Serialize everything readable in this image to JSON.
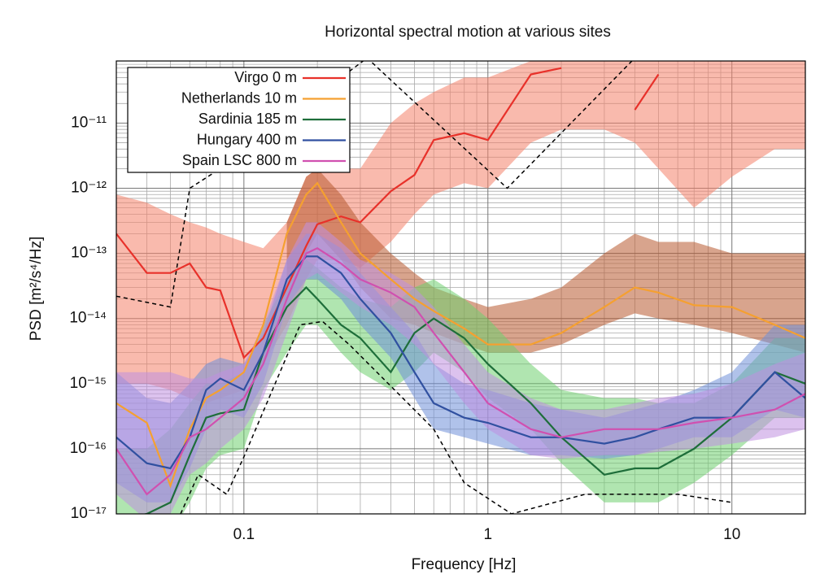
{
  "chart_data": {
    "type": "line",
    "title": "Horizontal spectral motion at various sites",
    "xlabel": "Frequency [Hz]",
    "ylabel": "PSD [m²/s⁴/Hz]",
    "xscale": "log",
    "yscale": "log",
    "grid": true,
    "legend": "top-left",
    "xlim": [
      0.03,
      20
    ],
    "ylim": [
      1e-17,
      9e-11
    ],
    "xticks": [
      0.1,
      1,
      10
    ],
    "yticks": [
      {
        "value": 1e-17,
        "label": "10⁻¹⁷"
      },
      {
        "value": 1e-16,
        "label": "10⁻¹⁶"
      },
      {
        "value": 1e-15,
        "label": "10⁻¹⁵"
      },
      {
        "value": 1e-14,
        "label": "10⁻¹⁴"
      },
      {
        "value": 1e-13,
        "label": "10⁻¹³"
      },
      {
        "value": 1e-12,
        "label": "10⁻¹²"
      },
      {
        "value": 1e-11,
        "label": "10⁻¹¹"
      }
    ],
    "x": [
      0.03,
      0.04,
      0.05,
      0.06,
      0.07,
      0.08,
      0.1,
      0.12,
      0.15,
      0.18,
      0.2,
      0.25,
      0.3,
      0.4,
      0.5,
      0.6,
      0.8,
      1,
      1.5,
      2,
      3,
      4,
      5,
      7,
      10,
      15,
      20
    ],
    "series": [
      {
        "name": "Virgo 0 m",
        "color": "#e8312a",
        "band_color": "#f4826a",
        "values": [
          2e-13,
          5e-14,
          5e-14,
          7e-14,
          3e-14,
          2.7e-14,
          2.5e-15,
          5e-15,
          3e-14,
          1.3e-13,
          2.8e-13,
          3.7e-13,
          3e-13,
          9e-13,
          1.6e-12,
          5.5e-12,
          7e-12,
          5.5e-12,
          5.6e-11,
          7e-11,
          null,
          1.6e-11,
          5.6e-11,
          null,
          null,
          null,
          null
        ],
        "lower": [
          1e-15,
          1e-15,
          8e-16,
          6e-16,
          5e-16,
          6e-16,
          8e-16,
          2e-15,
          8e-15,
          4e-14,
          8e-14,
          8e-14,
          6e-14,
          1.5e-13,
          4e-13,
          8e-13,
          1.2e-12,
          1e-12,
          5e-12,
          8e-12,
          8e-12,
          5e-12,
          2e-12,
          5e-13,
          1.5e-12,
          4e-12,
          4e-12
        ],
        "upper": [
          8e-13,
          6e-13,
          4e-13,
          3e-13,
          2.5e-13,
          2e-13,
          1.5e-13,
          1.2e-13,
          3e-13,
          1.5e-12,
          2e-12,
          2e-12,
          2e-12,
          1e-11,
          2e-11,
          3e-11,
          5e-11,
          5e-11,
          9e-11,
          9e-11,
          9e-11,
          9e-11,
          9e-11,
          9e-11,
          9e-11,
          9e-11,
          9e-11
        ]
      },
      {
        "name": "Netherlands 10 m",
        "color": "#f5a030",
        "band_color": "#b85a30",
        "values": [
          5e-16,
          2.5e-16,
          2.7e-17,
          2e-16,
          6e-16,
          8e-16,
          1.5e-15,
          8e-15,
          2e-13,
          8e-13,
          1.2e-12,
          3e-13,
          1e-13,
          4e-14,
          2e-14,
          1.3e-14,
          7e-15,
          4e-15,
          4e-15,
          6e-15,
          1.5e-14,
          3e-14,
          2.5e-14,
          1.6e-14,
          1.5e-14,
          8e-15,
          5e-15
        ],
        "lower": [
          null,
          null,
          null,
          null,
          null,
          null,
          null,
          null,
          3e-14,
          1e-13,
          2e-13,
          8e-14,
          3e-14,
          1e-14,
          8e-15,
          6e-15,
          4e-15,
          3e-15,
          3e-15,
          4e-15,
          8e-15,
          1.2e-14,
          1e-14,
          8e-15,
          6e-15,
          4e-15,
          3e-15
        ],
        "upper": [
          null,
          null,
          null,
          null,
          null,
          null,
          null,
          null,
          3e-13,
          1.5e-12,
          2e-12,
          8e-13,
          3e-13,
          1e-13,
          5e-14,
          3e-14,
          2e-14,
          1.5e-14,
          2e-14,
          3e-14,
          1e-13,
          2e-13,
          1.5e-13,
          1.5e-13,
          1e-13,
          1e-13,
          1e-13
        ]
      },
      {
        "name": "Sardinia 185 m",
        "color": "#1e6e3a",
        "band_color": "#6fcf6f",
        "values": [
          8e-18,
          1e-17,
          1.5e-17,
          8e-17,
          3e-16,
          3.5e-16,
          4e-16,
          3e-15,
          1.5e-14,
          3e-14,
          2e-14,
          8e-15,
          5e-15,
          1.5e-15,
          6e-15,
          1e-14,
          5e-15,
          2e-15,
          5e-16,
          1.5e-16,
          4e-17,
          5e-17,
          5e-17,
          1e-16,
          3e-16,
          1.5e-15,
          1e-15
        ],
        "lower": [
          5e-18,
          5e-18,
          5e-18,
          1.5e-17,
          5e-17,
          8e-17,
          1e-16,
          8e-16,
          3e-15,
          8e-15,
          8e-15,
          3e-15,
          1.5e-15,
          8e-16,
          1.5e-15,
          3e-15,
          1.5e-15,
          6e-16,
          2e-16,
          6e-17,
          1.5e-17,
          1.5e-17,
          1.5e-17,
          3e-17,
          8e-17,
          3e-16,
          3e-16
        ],
        "upper": [
          1e-16,
          1e-16,
          2e-16,
          5e-16,
          1e-15,
          1e-15,
          1.5e-15,
          8e-15,
          4e-14,
          8e-14,
          6e-14,
          3e-14,
          2e-14,
          1.5e-14,
          3e-14,
          4e-14,
          2e-14,
          1e-14,
          2e-15,
          8e-16,
          6e-16,
          6e-16,
          5e-16,
          5e-16,
          1e-15,
          5e-15,
          5e-15
        ]
      },
      {
        "name": "Hungary 400 m",
        "color": "#3050a0",
        "band_color": "#7090d8",
        "values": [
          1.5e-16,
          6e-17,
          5e-17,
          1.5e-16,
          8e-16,
          1.2e-15,
          8e-16,
          3e-15,
          4e-14,
          9e-14,
          9e-14,
          5e-14,
          2e-14,
          6e-15,
          1.5e-15,
          5e-16,
          3e-16,
          2.5e-16,
          1.5e-16,
          1.5e-16,
          1.2e-16,
          1.5e-16,
          2e-16,
          3e-16,
          3e-16,
          1.5e-15,
          6e-16
        ],
        "lower": [
          3e-17,
          1.5e-17,
          1.5e-17,
          5e-17,
          2e-16,
          4e-16,
          3e-16,
          1e-15,
          1.5e-14,
          4e-14,
          4e-14,
          2e-14,
          8e-15,
          2.5e-15,
          6e-16,
          2e-16,
          1.5e-16,
          1.2e-16,
          8e-17,
          8e-17,
          7e-17,
          8e-17,
          1e-16,
          1.5e-16,
          1.5e-16,
          4e-16,
          3e-16
        ],
        "upper": [
          1.5e-15,
          6e-16,
          5e-16,
          1e-15,
          2e-15,
          2.5e-15,
          2e-15,
          6e-15,
          8e-14,
          2e-13,
          2e-13,
          1.2e-13,
          5e-14,
          1.5e-14,
          6e-15,
          2e-15,
          1e-15,
          8e-16,
          5e-16,
          4e-16,
          3e-16,
          4e-16,
          5e-16,
          8e-16,
          1.5e-15,
          8e-15,
          8e-15
        ]
      },
      {
        "name": "Spain LSC 800 m",
        "color": "#d050b0",
        "band_color": "#c090e0",
        "values": [
          1e-16,
          2e-17,
          4e-17,
          1.5e-16,
          2e-16,
          3e-16,
          6e-16,
          2e-15,
          2e-14,
          1e-13,
          1.2e-13,
          7e-14,
          4e-14,
          2.5e-14,
          1.5e-14,
          6e-15,
          1.5e-15,
          5e-16,
          2e-16,
          1.5e-16,
          2e-16,
          2e-16,
          2e-16,
          2.5e-16,
          3e-16,
          4e-16,
          7e-16
        ],
        "lower": [
          2e-17,
          8e-18,
          1e-17,
          4e-17,
          6e-17,
          1e-16,
          2e-16,
          6e-16,
          6e-15,
          4e-14,
          5e-14,
          2.5e-14,
          1.5e-14,
          8e-15,
          4e-15,
          2e-15,
          5e-16,
          2e-16,
          8e-17,
          7e-17,
          8e-17,
          8e-17,
          9e-17,
          1e-16,
          1.2e-16,
          1.5e-16,
          2e-16
        ],
        "upper": [
          1.5e-15,
          1.5e-15,
          1.5e-15,
          1.2e-15,
          1.2e-15,
          1.5e-15,
          2e-15,
          8e-15,
          8e-14,
          3e-13,
          3e-13,
          1.5e-13,
          8e-14,
          5e-14,
          3e-14,
          1.5e-14,
          4e-15,
          1.5e-15,
          6e-16,
          4e-16,
          4e-16,
          5e-16,
          6e-16,
          7e-16,
          1e-15,
          2e-15,
          3e-15
        ]
      }
    ],
    "reference_lines": [
      {
        "color": "#000000",
        "dash": true,
        "x": [
          0.03,
          0.05,
          0.06,
          0.08,
          0.32,
          1.2,
          4
        ],
        "values": [
          2.2e-14,
          1.5e-14,
          1e-12,
          2e-12,
          1e-10,
          1e-12,
          1e-10
        ]
      },
      {
        "color": "#000000",
        "dash": true,
        "x": [
          0.055,
          0.065,
          0.085,
          0.1,
          0.17,
          0.21,
          0.27,
          0.6,
          0.8,
          1.25,
          2.5,
          6,
          10
        ],
        "values": [
          1e-17,
          4e-17,
          2e-17,
          7.5e-17,
          8e-15,
          9e-15,
          4e-15,
          2e-16,
          3e-17,
          1e-17,
          2e-17,
          2e-17,
          1.5e-17
        ]
      }
    ]
  }
}
